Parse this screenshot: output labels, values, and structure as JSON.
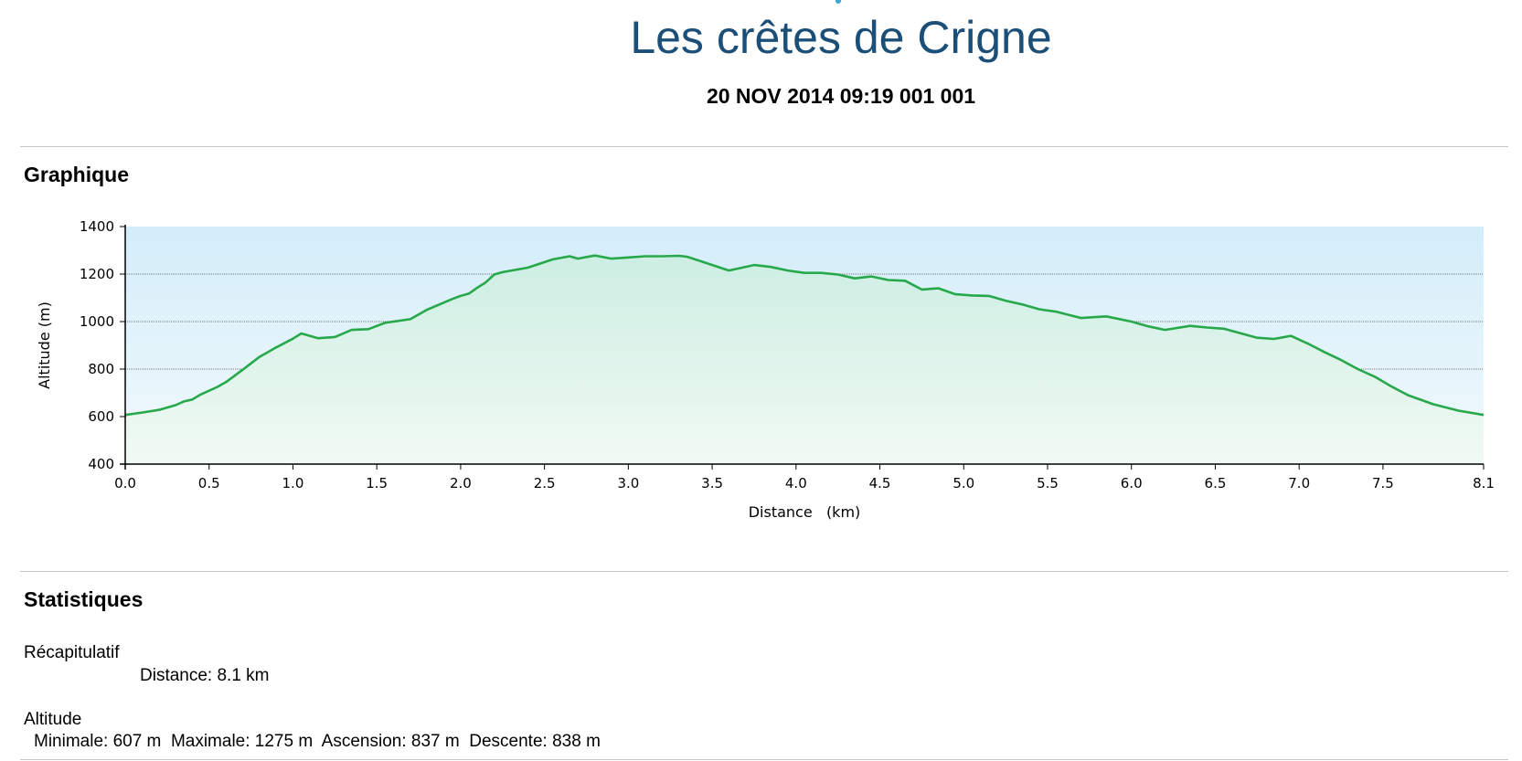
{
  "header": {
    "title": "Les crêtes de Crigne",
    "subtitle": "20 NOV 2014 09:19 001 001"
  },
  "sections": {
    "chart_heading": "Graphique",
    "stats_heading": "Statistiques"
  },
  "stats": {
    "summary_label": "Récapitulatif",
    "distance_text": "Distance: 8.1 km",
    "altitude_label": "Altitude",
    "altitude_line": "Minimale: 607 m  Maximale: 1275 m  Ascension: 837 m  Descente: 838 m"
  },
  "colors": {
    "title": "#1b4f78",
    "line": "#27a84a",
    "sky_top": "#d6eef8",
    "fill_bottom": "#eef9f1"
  },
  "chart_data": {
    "type": "area",
    "xlabel": "Distance   (km)",
    "ylabel": "Altitude (m)",
    "xlim": [
      0.0,
      8.1
    ],
    "ylim": [
      400,
      1400
    ],
    "x_ticks": [
      "0.0",
      "0.5",
      "1.0",
      "1.5",
      "2.0",
      "2.5",
      "3.0",
      "3.5",
      "4.0",
      "4.5",
      "5.0",
      "5.5",
      "6.0",
      "6.5",
      "7.0",
      "7.5",
      "8.1"
    ],
    "y_ticks": [
      "400",
      "600",
      "800",
      "1000",
      "1200",
      "1400"
    ],
    "grid": "horizontal",
    "series": [
      {
        "x": [
          0.0,
          0.1,
          0.2,
          0.3,
          0.35,
          0.4,
          0.45,
          0.55,
          0.6,
          0.7,
          0.8,
          0.9,
          1.0,
          1.05,
          1.15,
          1.25,
          1.35,
          1.45,
          1.55,
          1.7,
          1.8,
          1.9,
          1.95,
          2.0,
          2.05,
          2.1,
          2.15,
          2.2,
          2.25,
          2.4,
          2.55,
          2.65,
          2.7,
          2.8,
          2.9,
          3.0,
          3.1,
          3.2,
          3.3,
          3.35,
          3.45,
          3.6,
          3.75,
          3.85,
          3.95,
          4.05,
          4.15,
          4.25,
          4.35,
          4.45,
          4.55,
          4.65,
          4.75,
          4.85,
          4.95,
          5.05,
          5.15,
          5.25,
          5.35,
          5.45,
          5.55,
          5.7,
          5.85,
          6.0,
          6.1,
          6.2,
          6.35,
          6.45,
          6.55,
          6.75,
          6.85,
          6.95,
          7.05,
          7.15,
          7.25,
          7.35,
          7.45,
          7.55,
          7.65,
          7.8,
          7.95,
          8.1
        ],
        "y": [
          607,
          617,
          628,
          648,
          664,
          672,
          693,
          725,
          745,
          797,
          851,
          891,
          928,
          950,
          930,
          935,
          965,
          968,
          995,
          1010,
          1050,
          1080,
          1095,
          1108,
          1118,
          1143,
          1165,
          1198,
          1208,
          1227,
          1262,
          1275,
          1265,
          1278,
          1265,
          1270,
          1275,
          1275,
          1277,
          1273,
          1250,
          1215,
          1238,
          1230,
          1215,
          1205,
          1205,
          1198,
          1182,
          1190,
          1175,
          1172,
          1135,
          1140,
          1115,
          1110,
          1108,
          1088,
          1072,
          1052,
          1042,
          1015,
          1022,
          1000,
          980,
          965,
          982,
          975,
          970,
          932,
          927,
          940,
          908,
          872,
          838,
          800,
          768,
          727,
          690,
          652,
          625,
          607
        ]
      }
    ]
  }
}
